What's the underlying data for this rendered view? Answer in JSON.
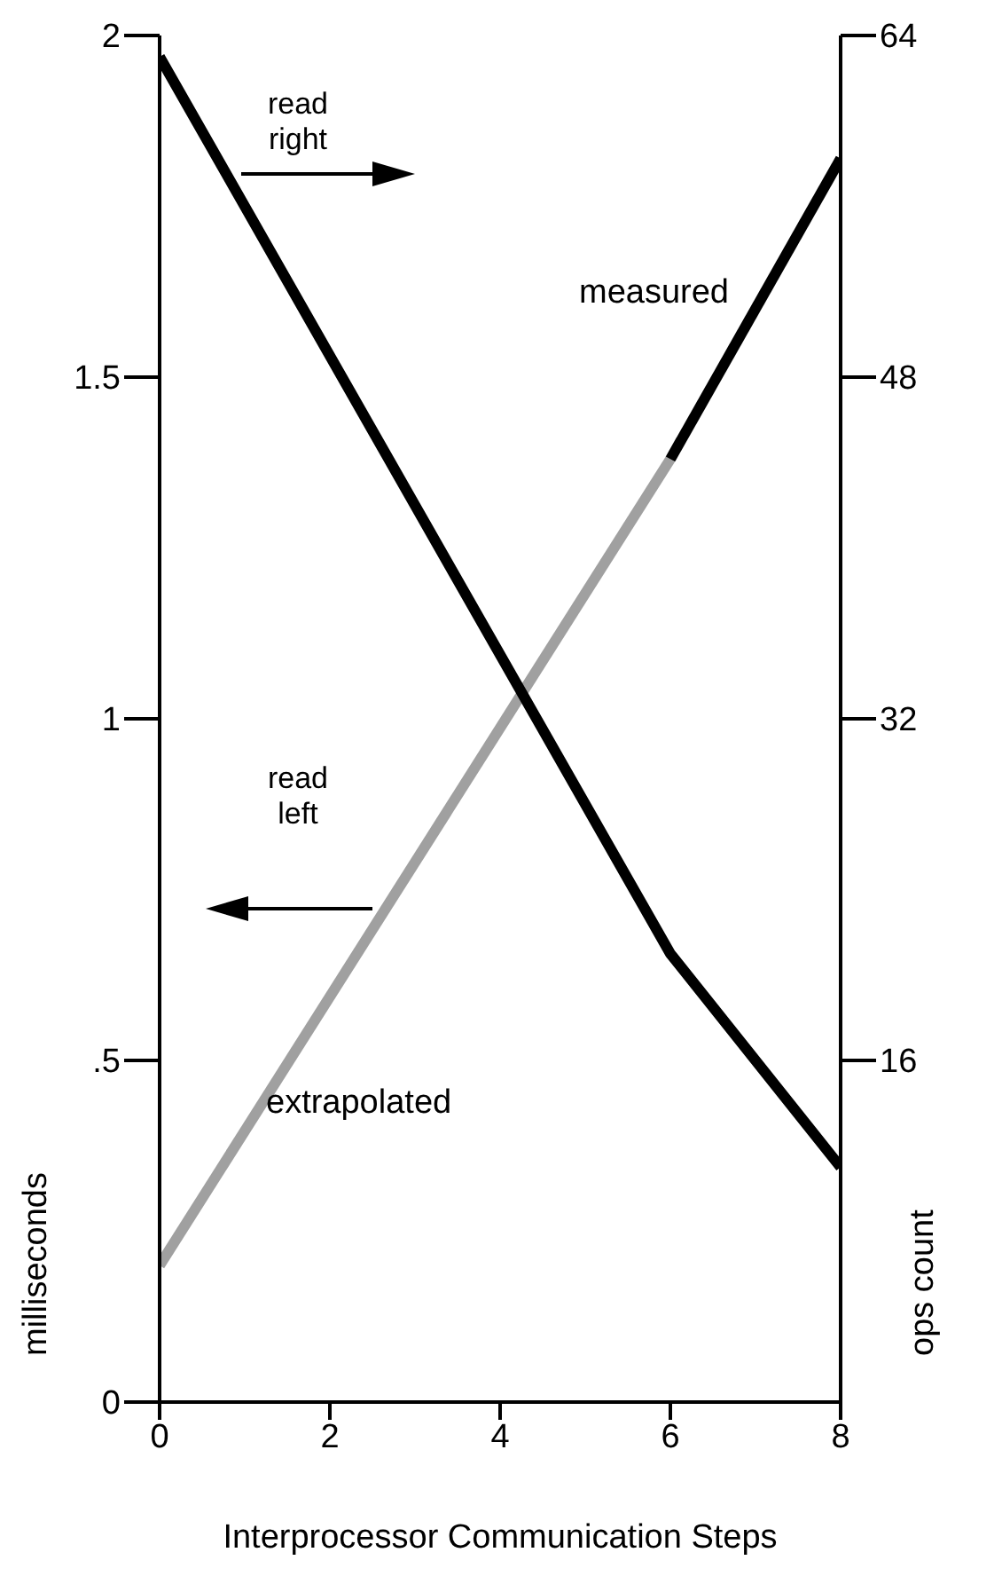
{
  "chart_data": {
    "type": "line",
    "xlabel": "Interprocessor Communication Steps",
    "ylabel": "milliseconds",
    "y2label": "ops count",
    "xlim": [
      0,
      8
    ],
    "xticks": [
      0,
      2,
      4,
      6,
      8
    ],
    "ylim": [
      0,
      2
    ],
    "yticks": [
      0,
      {
        "value": 0.5,
        "label": ".5"
      },
      1,
      1.5,
      2
    ],
    "y2lim": [
      0,
      64
    ],
    "y2ticks": [
      16,
      32,
      48,
      64
    ],
    "series": [
      {
        "name": "extrapolated",
        "color": "#a0a0a0",
        "x": [
          0,
          6
        ],
        "values": [
          0.2,
          1.38
        ]
      },
      {
        "name": "measured",
        "color": "#000000",
        "x": [
          6,
          8
        ],
        "values": [
          1.38,
          1.82
        ]
      },
      {
        "color": "#000000",
        "axis": "y2",
        "x": [
          0,
          6,
          8
        ],
        "values": [
          63,
          21,
          11
        ]
      }
    ],
    "annotations": [
      "read right",
      "read left"
    ],
    "marker": "none",
    "line_style": "solid"
  }
}
